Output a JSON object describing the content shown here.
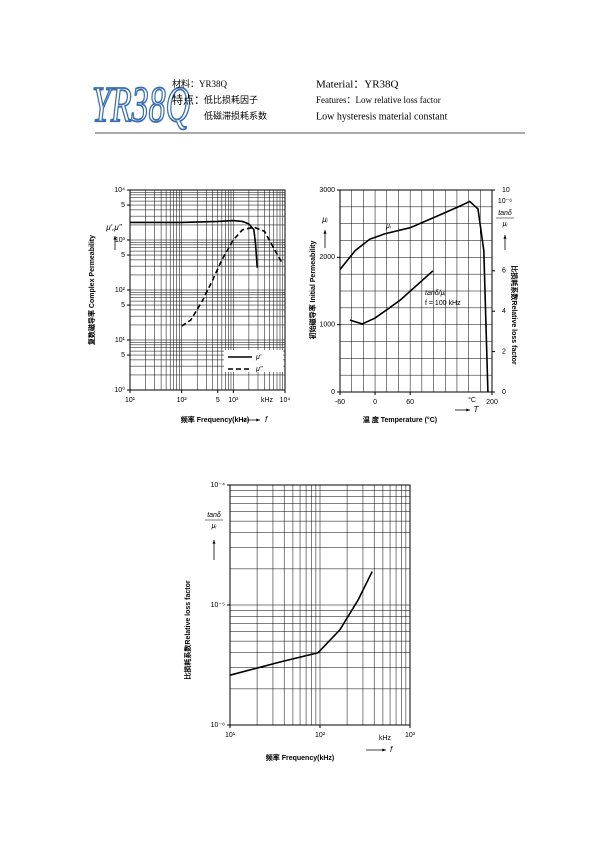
{
  "header": {
    "logo": "YR38Q",
    "cn_material": "材料：YR38Q",
    "cn_features_label": "特点：",
    "cn_features": [
      "低比损耗因子",
      "低磁滞损耗系数"
    ],
    "en_material": "Material：YR38Q",
    "en_features": "Features：Low relative loss factor",
    "en_features2": "Low hysteresis material constant"
  },
  "chart_data": [
    {
      "type": "line",
      "xscale": "log",
      "yscale": "log",
      "x_label": "频率  Frequency(kHz)",
      "y_label": "复数磁导率  Complex Permeability",
      "x_symbol": "f",
      "x_unit": "kHz",
      "y_symbol": "μ',μ''",
      "xlim": [
        10,
        10000
      ],
      "ylim": [
        1,
        10000
      ],
      "xticks": [
        {
          "value": 10,
          "label": "10¹"
        },
        {
          "value": 100,
          "label": "10²"
        },
        {
          "value": 500,
          "label": "5"
        },
        {
          "value": 1000,
          "label": "10³"
        },
        {
          "value": 10000,
          "label": "10⁴"
        }
      ],
      "yticks": [
        {
          "value": 1,
          "label": "10⁰"
        },
        {
          "value": 5,
          "label": "5"
        },
        {
          "value": 10,
          "label": "10¹"
        },
        {
          "value": 50,
          "label": "5"
        },
        {
          "value": 100,
          "label": "10²"
        },
        {
          "value": 500,
          "label": "5"
        },
        {
          "value": 1000,
          "label": "10³"
        },
        {
          "value": 5000,
          "label": "5"
        },
        {
          "value": 10000,
          "label": "10⁴"
        }
      ],
      "xgrid": [
        10,
        20,
        30,
        40,
        50,
        60,
        70,
        80,
        90,
        100,
        200,
        300,
        400,
        500,
        600,
        700,
        800,
        900,
        1000,
        2000,
        3000,
        4000,
        5000,
        6000,
        7000,
        8000,
        9000,
        10000
      ],
      "ygrid": [
        1,
        2,
        3,
        4,
        5,
        6,
        7,
        8,
        9,
        10,
        20,
        30,
        40,
        50,
        60,
        70,
        80,
        90,
        100,
        200,
        300,
        400,
        500,
        600,
        700,
        800,
        900,
        1000,
        2000,
        3000,
        4000,
        5000,
        6000,
        7000,
        8000,
        9000,
        10000
      ],
      "legend": "lower right",
      "series": [
        {
          "name": "μ'",
          "color": "#000000",
          "style": "solid",
          "x": [
            10,
            100,
            500,
            1000,
            1500,
            2000,
            2500,
            2700,
            2900
          ],
          "values": [
            2250,
            2250,
            2350,
            2450,
            2350,
            2100,
            1600,
            800,
            280
          ]
        },
        {
          "name": "μ''",
          "color": "#000000",
          "style": "dashed",
          "x": [
            100,
            150,
            250,
            400,
            600,
            1000,
            1500,
            2500,
            4000,
            6000,
            9000
          ],
          "values": [
            19,
            25,
            60,
            160,
            400,
            1000,
            1600,
            1800,
            1500,
            700,
            330
          ]
        }
      ]
    },
    {
      "type": "line",
      "xscale": "linear",
      "yscale": "linear",
      "x_label": "温 度    Temperature (°C)",
      "y_label": "初始磁导率  Initial Permeability",
      "y2_label": "比损耗系数Relative loss factor",
      "x_symbol": "T",
      "x_unit": "°C",
      "y_symbol": "μᵢ",
      "y2_symbol": {
        "num": "tanδ",
        "den": "μᵢ"
      },
      "y2_multiplier": "10⁻⁶",
      "annotation": "f = 100 kHz",
      "xlim": [
        -60,
        200
      ],
      "ylim": [
        0,
        3000
      ],
      "y2lim": [
        0,
        10
      ],
      "xticks": [
        -60,
        0,
        60,
        200
      ],
      "yticks": [
        0,
        1000,
        2000,
        3000
      ],
      "y2ticks": [
        0,
        2,
        4,
        6,
        10
      ],
      "xgrid": [
        -60,
        -40,
        -20,
        0,
        20,
        40,
        60,
        80,
        100,
        120,
        140,
        160,
        180,
        200
      ],
      "ygrid": [
        0,
        250,
        500,
        750,
        1000,
        1250,
        1500,
        1750,
        2000,
        2250,
        2500,
        2750,
        3000
      ],
      "series": [
        {
          "name": "μᵢ",
          "color": "#000000",
          "style": "solid",
          "x": [
            -60,
            -34,
            -9,
            17,
            60,
            111,
            145,
            162,
            176,
            186,
            193
          ],
          "values": [
            1820,
            2100,
            2270,
            2350,
            2440,
            2630,
            2760,
            2830,
            2720,
            2100,
            0
          ]
        },
        {
          "name": "tanδ/μᵢ",
          "color": "#000000",
          "style": "solid",
          "axis": "y2",
          "x": [
            -43,
            -22,
            0,
            43,
            99
          ],
          "values": [
            3.56,
            3.37,
            3.66,
            4.55,
            6.0
          ]
        }
      ]
    },
    {
      "type": "line",
      "xscale": "log",
      "yscale": "log",
      "x_label": "频率  Frequency(kHz)",
      "y_label": "比损耗系数Relative loss factor",
      "x_symbol": "f",
      "x_unit": "kHz",
      "y_symbol": {
        "num": "tanδ",
        "den": "μᵢ"
      },
      "xlim": [
        10,
        1000
      ],
      "ylim": [
        1e-06,
        0.0001
      ],
      "xticks": [
        {
          "value": 10,
          "label": "10¹"
        },
        {
          "value": 100,
          "label": "10²"
        },
        {
          "value": 1000,
          "label": "10³"
        }
      ],
      "yticks": [
        {
          "value": 1e-06,
          "label": "10⁻⁶"
        },
        {
          "value": 1e-05,
          "label": "10⁻⁵"
        },
        {
          "value": 0.0001,
          "label": "10⁻⁴"
        }
      ],
      "xgrid": [
        10,
        20,
        30,
        40,
        50,
        60,
        70,
        80,
        90,
        100,
        200,
        300,
        400,
        500,
        600,
        700,
        800,
        900,
        1000
      ],
      "ygrid": [
        1e-06,
        2e-06,
        3e-06,
        4e-06,
        5e-06,
        6e-06,
        7e-06,
        8e-06,
        9e-06,
        1e-05,
        2e-05,
        3e-05,
        4e-05,
        5e-05,
        6e-05,
        7e-05,
        8e-05,
        9e-05,
        0.0001
      ],
      "x": [
        10,
        36,
        95,
        166,
        265,
        380
      ],
      "values": [
        2.6e-06,
        3.35e-06,
        4e-06,
        6.2e-06,
        1.1e-05,
        1.9e-05
      ],
      "color": "#000000"
    }
  ]
}
